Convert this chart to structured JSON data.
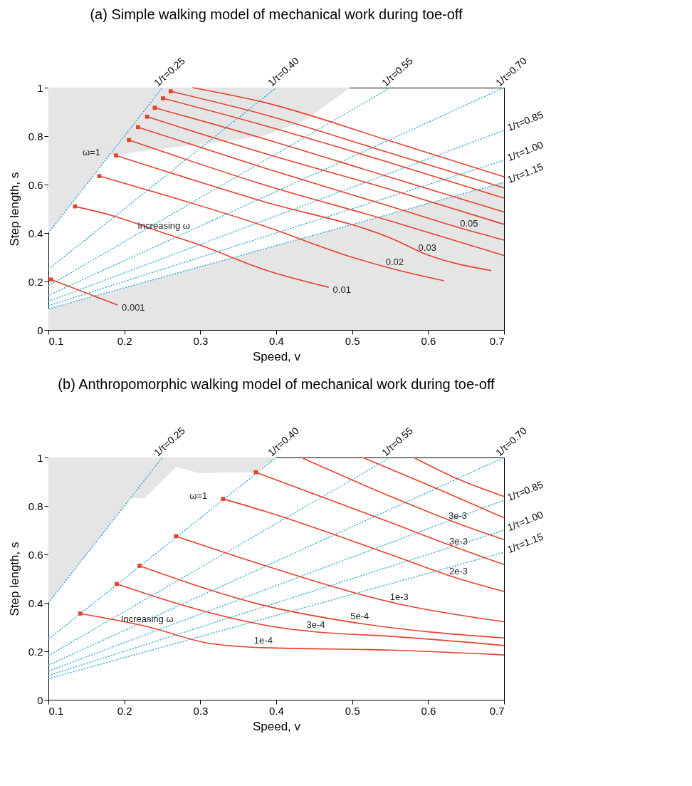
{
  "chart_data": [
    {
      "type": "line",
      "title": "(a) Simple walking model of mechanical work during toe-off",
      "xlabel": "Speed, v",
      "ylabel": "Step length, s",
      "xlim": [
        0.1,
        0.7
      ],
      "ylim": [
        0,
        1
      ],
      "xticks": [
        0.1,
        0.2,
        0.3,
        0.4,
        0.5,
        0.6,
        0.7
      ],
      "yticks": [
        0,
        0.2,
        0.4,
        0.6,
        0.8,
        1
      ],
      "series": [
        {
          "type": "area",
          "color": "#e5e5e5",
          "x": [
            0.1,
            0.1,
            0.18,
            0.28,
            0.383,
            0.44,
            0.497
          ],
          "values": [
            1.0,
            0.4,
            0.72,
            0.76,
            0.8,
            0.87,
            1.0
          ]
        },
        {
          "type": "line",
          "name": "1/τ=0.25",
          "color": "#1e9fd6",
          "line_style": "dotted",
          "x": [
            0.1,
            0.25
          ],
          "values": [
            0.4,
            1.0
          ]
        },
        {
          "type": "line",
          "name": "1/τ=0.40",
          "color": "#1e9fd6",
          "line_style": "dotted",
          "x": [
            0.1,
            0.4
          ],
          "values": [
            0.25,
            1.0
          ]
        },
        {
          "type": "line",
          "name": "1/τ=0.55",
          "color": "#1e9fd6",
          "line_style": "dotted",
          "x": [
            0.1,
            0.55
          ],
          "values": [
            0.182,
            1.0
          ]
        },
        {
          "type": "line",
          "name": "1/τ=0.70",
          "color": "#1e9fd6",
          "line_style": "dotted",
          "x": [
            0.1,
            0.7
          ],
          "values": [
            0.143,
            1.0
          ]
        },
        {
          "type": "line",
          "name": "1/τ=0.85",
          "color": "#1e9fd6",
          "line_style": "dotted",
          "x": [
            0.1,
            0.7
          ],
          "values": [
            0.118,
            0.824
          ]
        },
        {
          "type": "line",
          "name": "1/τ=1.00",
          "color": "#1e9fd6",
          "line_style": "dotted",
          "x": [
            0.1,
            0.7
          ],
          "values": [
            0.1,
            0.7
          ]
        },
        {
          "type": "line",
          "name": "1/τ=1.15",
          "color": "#1e9fd6",
          "line_style": "dotted",
          "x": [
            0.1,
            0.7
          ],
          "values": [
            0.087,
            0.609
          ],
          "lower": [
            0,
            0
          ],
          "upper": [
            0.087,
            0.609
          ]
        },
        {
          "type": "line",
          "color": "#e8412c",
          "line_style": "solid",
          "x": [
            0.29,
            0.383,
            0.55,
            0.7
          ],
          "values": [
            1.0,
            0.94,
            0.78,
            0.632
          ]
        },
        {
          "type": "line",
          "color": "#e8412c",
          "line_style": "solid",
          "x": [
            0.261,
            0.383,
            0.55,
            0.7
          ],
          "values": [
            0.985,
            0.89,
            0.73,
            0.586
          ]
        },
        {
          "type": "line",
          "color": "#e8412c",
          "line_style": "solid",
          "x": [
            0.251,
            0.383,
            0.55,
            0.7
          ],
          "values": [
            0.956,
            0.845,
            0.69,
            0.544
          ]
        },
        {
          "type": "line",
          "color": "#e8412c",
          "line_style": "solid",
          "x": [
            0.24,
            0.383,
            0.55,
            0.7
          ],
          "values": [
            0.917,
            0.79,
            0.63,
            0.487
          ]
        },
        {
          "type": "line",
          "color": "#e8412c",
          "line_style": "solid",
          "x": [
            0.23,
            0.383,
            0.55,
            0.7
          ],
          "values": [
            0.88,
            0.73,
            0.58,
            0.436
          ]
        },
        {
          "type": "line",
          "color": "#e8412c",
          "line_style": "solid",
          "x": [
            0.218,
            0.383,
            0.55,
            0.654,
            0.7
          ],
          "values": [
            0.837,
            0.67,
            0.51,
            0.41,
            0.371
          ]
        },
        {
          "type": "line",
          "color": "#e8412c",
          "line_style": "solid",
          "x": [
            0.206,
            0.383,
            0.55,
            0.7
          ],
          "values": [
            0.784,
            0.6,
            0.45,
            0.307
          ]
        },
        {
          "type": "line",
          "color": "#e8412c",
          "line_style": "solid",
          "x": [
            0.189,
            0.383,
            0.55,
            0.599,
            0.683
          ],
          "values": [
            0.72,
            0.53,
            0.38,
            0.31,
            0.245
          ]
        },
        {
          "type": "line",
          "color": "#e8412c",
          "line_style": "solid",
          "x": [
            0.167,
            0.383,
            0.5,
            0.556,
            0.621
          ],
          "values": [
            0.635,
            0.43,
            0.3,
            0.25,
            0.203
          ]
        },
        {
          "type": "line",
          "color": "#e8412c",
          "line_style": "solid",
          "x": [
            0.135,
            0.183,
            0.252,
            0.3,
            0.383,
            0.469
          ],
          "values": [
            0.51,
            0.473,
            0.4,
            0.35,
            0.25,
            0.176
          ]
        },
        {
          "type": "line",
          "color": "#e8412c",
          "line_style": "solid",
          "x": [
            0.1035,
            0.191
          ],
          "values": [
            0.208,
            0.103
          ]
        },
        {
          "type": "scatter",
          "color": "#e8412c",
          "marker": "square",
          "x": [
            0.261,
            0.251,
            0.24,
            0.23,
            0.218,
            0.206,
            0.189,
            0.167,
            0.135,
            0.1035
          ],
          "values": [
            0.985,
            0.956,
            0.917,
            0.88,
            0.837,
            0.784,
            0.72,
            0.635,
            0.51,
            0.208
          ]
        }
      ],
      "annotations": [
        {
          "text": "0.001",
          "x": 0.191,
          "y": 0.103
        },
        {
          "text": "0.01",
          "x": 0.469,
          "y": 0.176
        },
        {
          "text": "0.02",
          "x": 0.556,
          "y": 0.25
        },
        {
          "text": "0.03",
          "x": 0.599,
          "y": 0.31
        },
        {
          "text": "0.05",
          "x": 0.654,
          "y": 0.41
        },
        {
          "text": "ω=1",
          "x": 0.189,
          "y": 0.72
        },
        {
          "text": "Increasing ω",
          "x": 0.252,
          "y": 0.4
        }
      ]
    },
    {
      "type": "line",
      "title": "(b) Anthropomorphic walking model of mechanical work during toe-off",
      "xlabel": "Speed, v",
      "ylabel": "Step length, s",
      "xlim": [
        0.1,
        0.7
      ],
      "ylim": [
        0,
        1
      ],
      "xticks": [
        0.1,
        0.2,
        0.3,
        0.4,
        0.5,
        0.6,
        0.7
      ],
      "yticks": [
        0,
        0.2,
        0.4,
        0.6,
        0.8,
        1
      ],
      "series": [
        {
          "type": "area",
          "color": "#e5e5e5",
          "x": [
            0.1,
            0.1,
            0.208,
            0.227,
            0.268,
            0.298,
            0.36,
            0.373,
            0.4
          ],
          "values": [
            1.0,
            0.4,
            0.832,
            0.832,
            0.961,
            0.937,
            0.939,
            0.939,
            1.0
          ]
        },
        {
          "type": "line",
          "name": "1/τ=0.25",
          "color": "#1e9fd6",
          "line_style": "dotted",
          "x": [
            0.1,
            0.25
          ],
          "values": [
            0.4,
            1.0
          ]
        },
        {
          "type": "line",
          "name": "1/τ=0.40",
          "color": "#1e9fd6",
          "line_style": "dotted",
          "x": [
            0.1,
            0.4
          ],
          "values": [
            0.25,
            1.0
          ]
        },
        {
          "type": "line",
          "name": "1/τ=0.55",
          "color": "#1e9fd6",
          "line_style": "dotted",
          "x": [
            0.1,
            0.55
          ],
          "values": [
            0.182,
            1.0
          ]
        },
        {
          "type": "line",
          "name": "1/τ=0.70",
          "color": "#1e9fd6",
          "line_style": "dotted",
          "x": [
            0.1,
            0.7
          ],
          "values": [
            0.143,
            1.0
          ]
        },
        {
          "type": "line",
          "name": "1/τ=0.85",
          "color": "#1e9fd6",
          "line_style": "dotted",
          "x": [
            0.1,
            0.7
          ],
          "values": [
            0.118,
            0.824
          ]
        },
        {
          "type": "line",
          "name": "1/τ=1.00",
          "color": "#1e9fd6",
          "line_style": "dotted",
          "x": [
            0.1,
            0.7
          ],
          "values": [
            0.1,
            0.7
          ]
        },
        {
          "type": "line",
          "name": "1/τ=1.15",
          "color": "#1e9fd6",
          "line_style": "dotted",
          "x": [
            0.1,
            0.7
          ],
          "values": [
            0.087,
            0.609
          ]
        },
        {
          "type": "line",
          "color": "#e8412c",
          "line_style": "solid",
          "x": [
            0.581,
            0.64,
            0.7
          ],
          "values": [
            1.0,
            0.91,
            0.839
          ]
        },
        {
          "type": "line",
          "color": "#e8412c",
          "line_style": "solid",
          "x": [
            0.514,
            0.62,
            0.7
          ],
          "values": [
            1.0,
            0.86,
            0.751
          ]
        },
        {
          "type": "line",
          "color": "#e8412c",
          "line_style": "solid",
          "x": [
            0.433,
            0.55,
            0.639,
            0.7
          ],
          "values": [
            1.0,
            0.84,
            0.728,
            0.661
          ]
        },
        {
          "type": "line",
          "color": "#e8412c",
          "line_style": "solid",
          "x": [
            0.373,
            0.55,
            0.64,
            0.7
          ],
          "values": [
            0.939,
            0.732,
            0.625,
            0.558
          ]
        },
        {
          "type": "line",
          "color": "#e8412c",
          "line_style": "solid",
          "x": [
            0.33,
            0.383,
            0.55,
            0.64,
            0.7
          ],
          "values": [
            0.829,
            0.78,
            0.6,
            0.5,
            0.447
          ]
        },
        {
          "type": "line",
          "color": "#e8412c",
          "line_style": "solid",
          "x": [
            0.268,
            0.383,
            0.562,
            0.7
          ],
          "values": [
            0.675,
            0.556,
            0.395,
            0.322
          ]
        },
        {
          "type": "line",
          "color": "#e8412c",
          "line_style": "solid",
          "x": [
            0.22,
            0.383,
            0.51,
            0.7
          ],
          "values": [
            0.553,
            0.39,
            0.315,
            0.255
          ]
        },
        {
          "type": "line",
          "color": "#e8412c",
          "line_style": "solid",
          "x": [
            0.19,
            0.3,
            0.4,
            0.452,
            0.55,
            0.7
          ],
          "values": [
            0.478,
            0.37,
            0.3,
            0.28,
            0.262,
            0.224
          ]
        },
        {
          "type": "line",
          "color": "#e8412c",
          "line_style": "solid",
          "x": [
            0.142,
            0.23,
            0.31,
            0.383,
            0.55,
            0.7
          ],
          "values": [
            0.356,
            0.302,
            0.234,
            0.215,
            0.205,
            0.185
          ]
        },
        {
          "type": "scatter",
          "color": "#e8412c",
          "marker": "square",
          "x": [
            0.373,
            0.33,
            0.268,
            0.22,
            0.19,
            0.142
          ],
          "values": [
            0.939,
            0.829,
            0.675,
            0.553,
            0.478,
            0.356
          ]
        }
      ],
      "annotations": [
        {
          "text": "3e-3",
          "x": 0.639,
          "y": 0.728
        },
        {
          "text": "3e-3",
          "x": 0.64,
          "y": 0.625
        },
        {
          "text": "2e-3",
          "x": 0.64,
          "y": 0.5
        },
        {
          "text": "1e-3",
          "x": 0.562,
          "y": 0.395
        },
        {
          "text": "5e-4",
          "x": 0.51,
          "y": 0.315
        },
        {
          "text": "3e-4",
          "x": 0.452,
          "y": 0.28
        },
        {
          "text": "1e-4",
          "x": 0.383,
          "y": 0.215
        },
        {
          "text": "ω=1",
          "x": 0.33,
          "y": 0.829
        },
        {
          "text": "Increasing ω",
          "x": 0.23,
          "y": 0.302
        }
      ]
    }
  ]
}
